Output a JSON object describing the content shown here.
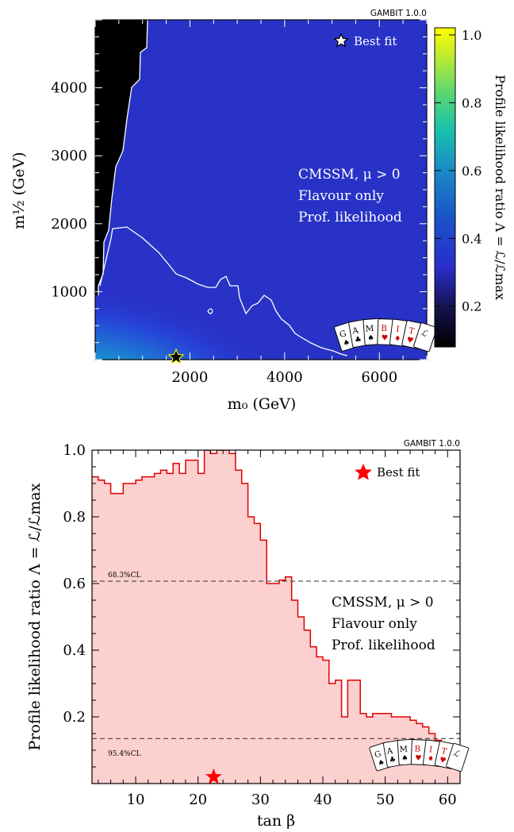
{
  "charts": {
    "top": {
      "gambit_version": "GAMBIT 1.0.0",
      "legend_best_fit": "Best fit",
      "annotations": [
        "CMSSM, μ > 0",
        "Flavour only",
        "Prof. likelihood"
      ],
      "xlabel": "m₀ (GeV)",
      "ylabel": "m½ (GeV)",
      "colorbar_label": "Profile likelihood ratio Λ = ℒ/ℒmax",
      "x_ticks": [
        "2000",
        "4000",
        "6000"
      ],
      "y_ticks": [
        "1000",
        "2000",
        "3000",
        "4000"
      ],
      "colorbar_ticks": [
        "0.2",
        "0.4",
        "0.6",
        "0.8",
        "1.0"
      ]
    },
    "bottom": {
      "gambit_version": "GAMBIT 1.0.0",
      "legend_best_fit": "Best fit",
      "annotations": [
        "CMSSM, μ > 0",
        "Flavour only",
        "Prof. likelihood"
      ],
      "xlabel": "tan β",
      "ylabel": "Profile likelihood ratio Λ = ℒ/ℒmax",
      "cl68_label": "68.3%CL",
      "cl95_label": "95.4%CL",
      "x_ticks": [
        "10",
        "20",
        "30",
        "40",
        "50",
        "60"
      ],
      "y_ticks": [
        "0.2",
        "0.4",
        "0.6",
        "0.8",
        "1.0"
      ]
    }
  },
  "colors": {
    "bestfit_star_bottom": "#ff0000",
    "line": "#e00000",
    "fill": "#fdd0d0",
    "cards_red": "#cc0000"
  },
  "chart_data": [
    {
      "type": "heatmap",
      "title": "",
      "xlabel": "m₀ (GeV)",
      "ylabel": "m½ (GeV)",
      "xlim": [
        0,
        7000
      ],
      "ylim": [
        0,
        5000
      ],
      "zlim": [
        0.1,
        1.0
      ],
      "best_fit": {
        "x": 1700,
        "y": 80
      },
      "colorscale": "viridis"
    },
    {
      "type": "area",
      "title": "",
      "xlabel": "tan β",
      "ylabel": "Profile likelihood ratio Λ = ℒ/ℒmax",
      "xlim": [
        3,
        62
      ],
      "ylim": [
        0,
        1.0
      ],
      "cl_lines": [
        {
          "name": "68.3%CL",
          "y": 0.607
        },
        {
          "name": "95.4%CL",
          "y": 0.135
        }
      ],
      "best_fit": {
        "x": 22.5,
        "y": 0.02
      },
      "step_edges": [
        3,
        4,
        5,
        6,
        7,
        8,
        9,
        10,
        11,
        12,
        13,
        14,
        15,
        16,
        17,
        18,
        19,
        20,
        21,
        22,
        23,
        24,
        25,
        26,
        27,
        28,
        29,
        30,
        31,
        32,
        33,
        34,
        35,
        36,
        37,
        38,
        39,
        40,
        41,
        42,
        43,
        44,
        45,
        46,
        47,
        48,
        49,
        50,
        51,
        52,
        53,
        54,
        55,
        56,
        57,
        58,
        59,
        60,
        61,
        62
      ],
      "values": [
        0.92,
        0.91,
        0.9,
        0.87,
        0.87,
        0.9,
        0.9,
        0.91,
        0.92,
        0.92,
        0.93,
        0.94,
        0.93,
        0.96,
        0.93,
        0.97,
        0.97,
        0.93,
        1.0,
        0.99,
        1.0,
        1.0,
        0.99,
        0.94,
        0.9,
        0.8,
        0.78,
        0.73,
        0.6,
        0.6,
        0.61,
        0.62,
        0.55,
        0.5,
        0.46,
        0.41,
        0.38,
        0.37,
        0.3,
        0.31,
        0.2,
        0.31,
        0.31,
        0.21,
        0.2,
        0.21,
        0.21,
        0.21,
        0.2,
        0.2,
        0.2,
        0.19,
        0.18,
        0.17,
        0.15,
        0.13,
        0.12,
        0.11,
        0.1
      ]
    }
  ]
}
